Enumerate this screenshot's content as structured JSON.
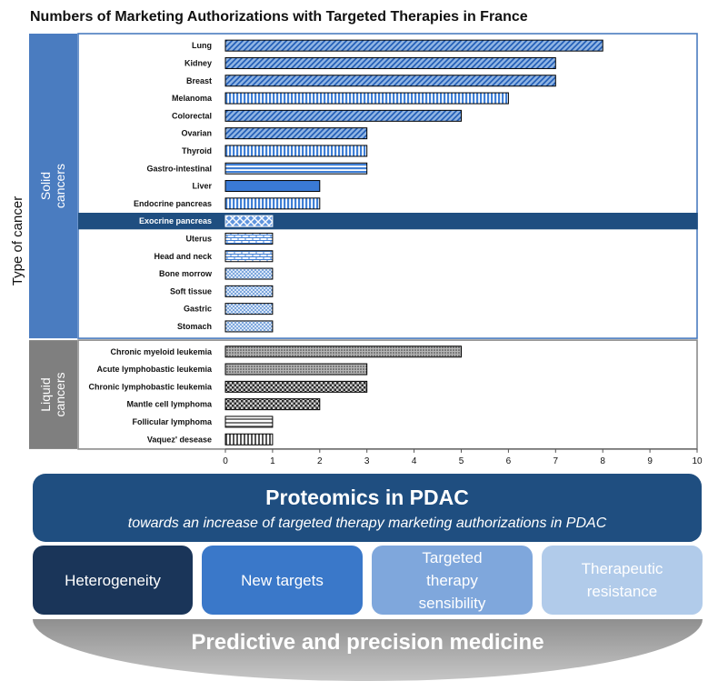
{
  "chart_data": {
    "type": "bar",
    "orientation": "horizontal",
    "title": "Numbers of Marketing Authorizations with Targeted Therapies in France",
    "ylabel": "Type of cancer",
    "xlim": [
      0,
      10
    ],
    "x_ticks": [
      "0",
      "1",
      "2",
      "3",
      "4",
      "5",
      "6",
      "7",
      "8",
      "9",
      "10"
    ],
    "highlight": "Exocrine pancreas",
    "groups": [
      {
        "label": "Solid cancers",
        "label_lines": [
          "Solid",
          "cancers"
        ],
        "color": "#4a7cc0",
        "categories": [
          "Lung",
          "Kidney",
          "Breast",
          "Melanoma",
          "Colorectal",
          "Ovarian",
          "Thyroid",
          "Gastro-intestinal",
          "Liver",
          "Endocrine pancreas",
          "Exocrine pancreas",
          "Uterus",
          "Head and neck",
          "Bone morrow",
          "Soft tissue",
          "Gastric",
          "Stomach"
        ],
        "values": [
          8,
          7,
          7,
          6,
          5,
          3,
          3,
          3,
          2,
          2,
          1,
          1,
          1,
          1,
          1,
          1,
          1
        ],
        "patterns": [
          "diag",
          "diag",
          "diag",
          "vert",
          "diag",
          "diag",
          "vert",
          "horiz",
          "plain",
          "vert",
          "diamond",
          "brick",
          "brick",
          "dots",
          "dots",
          "dots",
          "dots"
        ]
      },
      {
        "label": "Liquid cancers",
        "label_lines": [
          "Liquid",
          "cancers"
        ],
        "color": "#7f7f7f",
        "categories": [
          "Chronic myeloid leukemia",
          "Acute lymphobastic leukemia",
          "Chronic lymphobastic leukemia",
          "Mantle cell lymphoma",
          "Follicular lymphoma",
          "Vaquez' desease"
        ],
        "values": [
          5,
          3,
          3,
          2,
          1,
          1
        ],
        "patterns": [
          "dots",
          "dots",
          "check",
          "check",
          "horiz",
          "vert"
        ]
      }
    ]
  },
  "banner": {
    "title": "Proteomics in PDAC",
    "subtitle": "towards an increase of targeted therapy marketing authorizations in PDAC"
  },
  "boxes": [
    {
      "label": "Heterogeneity",
      "bg": "#1a3559",
      "fg": "#ffffff"
    },
    {
      "label": "New targets",
      "bg": "#3a78c9",
      "fg": "#ffffff"
    },
    {
      "label": "Targeted therapy sensibility",
      "bg": "#7fa7dc",
      "fg": "#ffffff"
    },
    {
      "label": "Therapeutic resistance",
      "bg": "#b1cbea",
      "fg": "#ffffff"
    }
  ],
  "footer": {
    "label": "Predictive and precision medicine"
  }
}
